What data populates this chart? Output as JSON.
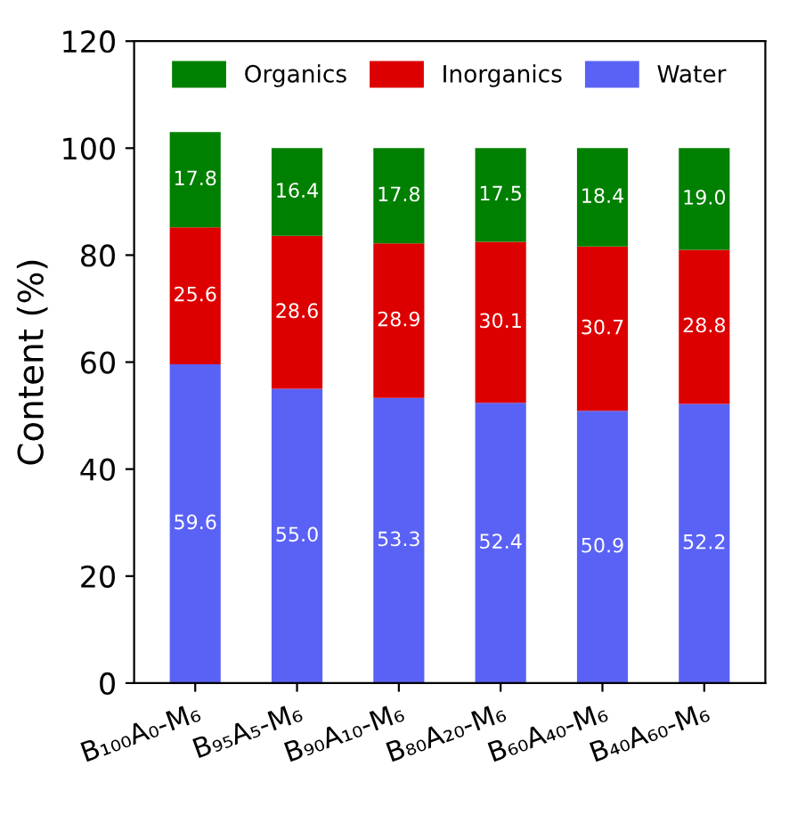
{
  "chart_data": {
    "type": "bar",
    "stacked": true,
    "ylabel": "Content (%)",
    "categories": [
      "B₁₀₀A₀-M₆",
      "B₉₅A₅-M₆",
      "B₉₀A₁₀-M₆",
      "B₈₀A₂₀-M₆",
      "B₆₀A₄₀-M₆",
      "B₄₀A₆₀-M₆"
    ],
    "series": [
      {
        "name": "Water",
        "color": "#5a62f5",
        "values": [
          59.6,
          55.0,
          53.3,
          52.4,
          50.9,
          52.2
        ],
        "value_labels": [
          "59.6",
          "55.0",
          "53.3",
          "52.4",
          "50.9",
          "52.2"
        ]
      },
      {
        "name": "Inorganics",
        "color": "#dd0000",
        "values": [
          25.6,
          28.6,
          28.9,
          30.1,
          30.7,
          28.8
        ],
        "value_labels": [
          "25.6",
          "28.6",
          "28.9",
          "30.1",
          "30.7",
          "28.8"
        ]
      },
      {
        "name": "Organics",
        "color": "#008000",
        "values": [
          17.8,
          16.4,
          17.8,
          17.5,
          18.4,
          19.0
        ],
        "value_labels": [
          "17.8",
          "16.4",
          "17.8",
          "17.5",
          "18.4",
          "19.0"
        ]
      }
    ],
    "ylim": [
      0,
      120
    ],
    "yticks": [
      0,
      20,
      40,
      60,
      80,
      100,
      120
    ],
    "legend": "top",
    "grid": false
  }
}
